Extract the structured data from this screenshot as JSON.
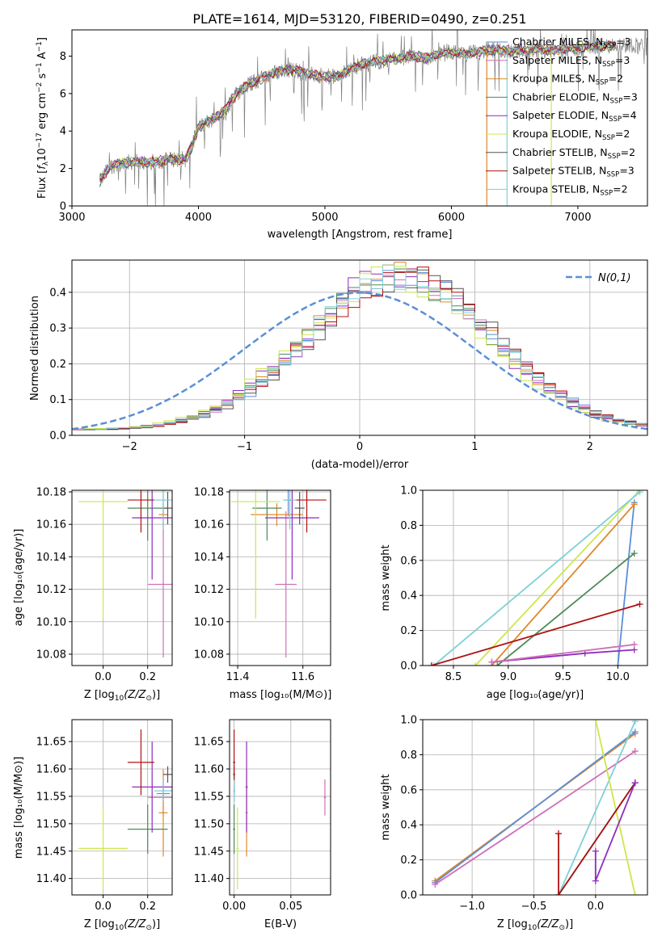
{
  "title": "PLATE=1614, MJD=53120, FIBERID=0490, z=0.251",
  "colors": {
    "chabrier_miles": "#5b8fd6",
    "salpeter_miles": "#cf6fb6",
    "kroupa_miles": "#e0882a",
    "chabrier_elodie": "#4e8a5a",
    "salpeter_elodie": "#8f2bbf",
    "kroupa_elodie": "#cbe84a",
    "chabrier_stelib": "#555555",
    "salpeter_stelib": "#b01010",
    "kroupa_stelib": "#7fd0d6",
    "data": "#808080",
    "normal": "#5b8fd6"
  },
  "chart_data": [
    {
      "id": "spectrum",
      "type": "line",
      "xlabel": "wavelength [Angstrom, rest frame]",
      "ylabel": "Flux [f_λ 10^-17 erg cm^-2 s^-1 A^-1]",
      "ylabel_main": "Flux [",
      "ylabel_f": "f",
      "ylabel_lambda_sub": "λ",
      "ylabel_rest": "10",
      "ylabel_exp": "−17",
      "ylabel_units": " erg cm",
      "ylabel_exp2": "−2",
      "ylabel_s": " s",
      "ylabel_exp3": "−1",
      "ylabel_A": " A",
      "ylabel_exp4": "−1",
      "ylabel_close": "]",
      "xlim": [
        3000,
        7550
      ],
      "ylim": [
        0,
        9.4
      ],
      "xticks": [
        "3000",
        "4000",
        "5000",
        "6000",
        "7000"
      ],
      "yticks": [
        "0",
        "2",
        "4",
        "6",
        "8"
      ],
      "continuum": {
        "x": [
          3220,
          3300,
          3400,
          3500,
          3600,
          3700,
          3800,
          3900,
          3950,
          4000,
          4100,
          4200,
          4300,
          4400,
          4500,
          4600,
          4700,
          4800,
          4900,
          5000,
          5100,
          5200,
          5300,
          5400,
          5500,
          5600,
          5700,
          5800,
          5900,
          6000,
          6100,
          6200,
          6300,
          6400,
          6500,
          6600,
          6700,
          6800,
          6900,
          7000,
          7100,
          7200,
          7300
        ],
        "y": [
          1.3,
          2.1,
          2.3,
          2.35,
          2.3,
          2.4,
          2.5,
          2.5,
          3.2,
          4.2,
          4.6,
          5.0,
          6.0,
          6.5,
          6.8,
          7.1,
          7.3,
          7.2,
          7.0,
          6.9,
          6.9,
          7.3,
          7.6,
          7.7,
          7.8,
          7.9,
          8.0,
          7.9,
          8.1,
          8.2,
          8.1,
          8.2,
          8.3,
          8.3,
          8.3,
          8.3,
          8.4,
          8.3,
          8.4,
          8.4,
          8.5,
          8.5,
          8.6
        ]
      },
      "legend": [
        {
          "label": "Chabrier MILES, N",
          "n": "3",
          "color_key": "chabrier_miles"
        },
        {
          "label": "Salpeter MILES, N",
          "n": "3",
          "color_key": "salpeter_miles"
        },
        {
          "label": "Kroupa MILES, N",
          "n": "2",
          "color_key": "kroupa_miles"
        },
        {
          "label": "Chabrier ELODIE, N",
          "n": "3",
          "color_key": "chabrier_elodie"
        },
        {
          "label": "Salpeter ELODIE, N",
          "n": "4",
          "color_key": "salpeter_elodie"
        },
        {
          "label": "Kroupa ELODIE, N",
          "n": "2",
          "color_key": "kroupa_elodie"
        },
        {
          "label": "Chabrier STELIB, N",
          "n": "2",
          "color_key": "chabrier_stelib"
        },
        {
          "label": "Salpeter STELIB, N",
          "n": "3",
          "color_key": "salpeter_stelib"
        },
        {
          "label": "Kroupa STELIB, N",
          "n": "2",
          "color_key": "kroupa_stelib"
        }
      ],
      "legend_sub": "SSP"
    },
    {
      "id": "residuals",
      "type": "histogram",
      "xlabel": "(data-model)/error",
      "ylabel": "Normed distribution",
      "xlim": [
        -2.5,
        2.5
      ],
      "ylim": [
        0,
        0.49
      ],
      "xticks": [
        "−2",
        "−1",
        "0",
        "1",
        "2"
      ],
      "yticks": [
        "0.0",
        "0.1",
        "0.2",
        "0.3",
        "0.4"
      ],
      "legend": "N(0,1)",
      "bin_width": 0.1,
      "bins_start": -2.5,
      "base_shift": 0.35,
      "base_sigma": 0.8,
      "base_peak": 0.43
    },
    {
      "id": "age_vs_Z",
      "type": "errorbar",
      "xlabel": "Z [log10(Z/Z⊙)]",
      "ylabel": "age  [log10(age/yr)]",
      "xlim": [
        -0.14,
        0.31
      ],
      "ylim": [
        10.073,
        10.181
      ],
      "xticks": [
        "0.0",
        "0.2"
      ],
      "yticks": [
        "10.08",
        "10.10",
        "10.12",
        "10.14",
        "10.16",
        "10.18"
      ]
    },
    {
      "id": "age_vs_mass",
      "type": "errorbar",
      "xlabel": "mass [log10(M/M⊙)]",
      "ylabel": "",
      "xlim": [
        11.375,
        11.685
      ],
      "ylim": [
        10.073,
        10.181
      ],
      "xticks": [
        "11.4",
        "11.6"
      ],
      "yticks": [
        "10.08",
        "10.10",
        "10.12",
        "10.14",
        "10.16",
        "10.18"
      ]
    },
    {
      "id": "weight_vs_age",
      "type": "line",
      "xlabel": "age  [log10(age/yr)]",
      "ylabel": "mass weight",
      "xlim": [
        8.22,
        10.27
      ],
      "ylim": [
        0,
        1.0
      ],
      "xticks": [
        "8.5",
        "9.0",
        "9.5",
        "10.0"
      ],
      "yticks": [
        "0.0",
        "0.2",
        "0.4",
        "0.6",
        "0.8",
        "1.0"
      ]
    },
    {
      "id": "mass_vs_Z",
      "type": "errorbar",
      "xlabel": "Z [log10(Z/Z⊙)]",
      "ylabel": "mass [log10(M/M⊙)]",
      "xlim": [
        -0.14,
        0.31
      ],
      "ylim": [
        11.37,
        11.69
      ],
      "xticks": [
        "0.0",
        "0.2"
      ],
      "yticks": [
        "11.40",
        "11.45",
        "11.50",
        "11.55",
        "11.60",
        "11.65"
      ]
    },
    {
      "id": "mass_vs_ebv",
      "type": "errorbar",
      "xlabel": "E(B-V)",
      "ylabel": "",
      "xlim": [
        -0.004,
        0.085
      ],
      "ylim": [
        11.37,
        11.69
      ],
      "xticks": [
        "0.00",
        "0.05"
      ],
      "yticks": [
        "11.40",
        "11.45",
        "11.50",
        "11.55",
        "11.60",
        "11.65"
      ]
    },
    {
      "id": "weight_vs_Z",
      "type": "line",
      "xlabel": "Z [log10(Z/Z⊙)]",
      "ylabel": "mass weight",
      "xlim": [
        -1.4,
        0.42
      ],
      "ylim": [
        0,
        1.0
      ],
      "xticks": [
        "−1.0",
        "−0.5",
        "0.0"
      ],
      "yticks": [
        "0.0",
        "0.2",
        "0.4",
        "0.6",
        "0.8",
        "1.0"
      ]
    }
  ],
  "fits": [
    {
      "key": "chabrier_miles",
      "Z": 0.27,
      "Zerr": 0.03,
      "age": 10.175,
      "ageErr": 0.01,
      "mass": 11.555,
      "massErr": 0.015,
      "ebv": 0.0,
      "ebvErr": 0.0
    },
    {
      "key": "salpeter_miles",
      "Z": 0.27,
      "Zerr": 0.07,
      "age": 10.123,
      "ageErr": 0.045,
      "mass": 11.548,
      "massErr": 0.033,
      "ebv": 0.08,
      "ebvErr": 0.001
    },
    {
      "key": "kroupa_miles",
      "Z": 0.27,
      "Zerr": 0.02,
      "age": 10.166,
      "ageErr": 0.007,
      "mass": 11.52,
      "massErr": 0.08,
      "ebv": 0.011,
      "ebvErr": 0.001
    },
    {
      "key": "chabrier_elodie",
      "Z": 0.2,
      "Zerr": 0.09,
      "age": 10.17,
      "ageErr": 0.02,
      "mass": 11.49,
      "massErr": 0.045,
      "ebv": 0.0,
      "ebvErr": 0.001
    },
    {
      "key": "salpeter_elodie",
      "Z": 0.22,
      "Zerr": 0.09,
      "age": 10.164,
      "ageErr": 0.038,
      "mass": 11.567,
      "massErr": 0.083,
      "ebv": 0.011,
      "ebvErr": 0.001
    },
    {
      "key": "kroupa_elodie",
      "Z": 0.0,
      "Zerr": 0.11,
      "age": 10.174,
      "ageErr": 0.072,
      "mass": 11.455,
      "massErr": 0.075,
      "ebv": 0.003,
      "ebvErr": 0.001
    },
    {
      "key": "chabrier_stelib",
      "Z": 0.29,
      "Zerr": 0.02,
      "age": 10.17,
      "ageErr": 0.01,
      "mass": 11.59,
      "massErr": 0.015,
      "ebv": 0.0,
      "ebvErr": 0.001
    },
    {
      "key": "salpeter_stelib",
      "Z": 0.17,
      "Zerr": 0.06,
      "age": 10.175,
      "ageErr": 0.02,
      "mass": 11.612,
      "massErr": 0.06,
      "ebv": 0.0,
      "ebvErr": 0.001
    },
    {
      "key": "kroupa_stelib",
      "Z": 0.27,
      "Zerr": 0.04,
      "age": 10.175,
      "ageErr": 0.018,
      "mass": 11.56,
      "massErr": 0.02,
      "ebv": 0.0,
      "ebvErr": 0.001
    }
  ],
  "weights_age": [
    {
      "key": "kroupa_elodie",
      "pts": [
        [
          8.7,
          0.0
        ],
        [
          10.2,
          1.0
        ]
      ]
    },
    {
      "key": "kroupa_stelib",
      "pts": [
        [
          8.32,
          0.0
        ],
        [
          10.2,
          0.99
        ]
      ]
    },
    {
      "key": "chabrier_miles",
      "pts": [
        [
          10.0,
          0.0
        ],
        [
          10.15,
          0.93
        ]
      ]
    },
    {
      "key": "kroupa_miles",
      "pts": [
        [
          8.85,
          0.0
        ],
        [
          10.15,
          0.92
        ]
      ]
    },
    {
      "key": "chabrier_elodie",
      "pts": [
        [
          8.9,
          0.0
        ],
        [
          10.15,
          0.64
        ]
      ]
    },
    {
      "key": "salpeter_elodie",
      "pts": [
        [
          8.85,
          0.02
        ],
        [
          9.7,
          0.07
        ],
        [
          10.15,
          0.09
        ]
      ]
    },
    {
      "key": "salpeter_stelib",
      "pts": [
        [
          8.3,
          0.0
        ],
        [
          10.2,
          0.35
        ]
      ]
    },
    {
      "key": "salpeter_miles",
      "pts": [
        [
          8.85,
          0.02
        ],
        [
          10.15,
          0.12
        ]
      ]
    }
  ],
  "weights_Z": [
    {
      "key": "kroupa_miles",
      "pts": [
        [
          -1.3,
          0.08
        ],
        [
          0.32,
          0.92
        ]
      ]
    },
    {
      "key": "chabrier_miles",
      "pts": [
        [
          -1.3,
          0.07
        ],
        [
          0.32,
          0.93
        ]
      ]
    },
    {
      "key": "salpeter_miles",
      "pts": [
        [
          -1.3,
          0.06
        ],
        [
          0.32,
          0.82
        ]
      ]
    },
    {
      "key": "kroupa_stelib",
      "pts": [
        [
          -0.3,
          0.0
        ],
        [
          0.32,
          0.99
        ]
      ]
    },
    {
      "key": "kroupa_elodie",
      "pts": [
        [
          0.0,
          1.0
        ],
        [
          0.32,
          0.0
        ]
      ]
    },
    {
      "key": "chabrier_elodie",
      "pts": [
        [
          -0.3,
          0.0
        ],
        [
          0.32,
          0.64
        ]
      ]
    },
    {
      "key": "salpeter_stelib",
      "pts": [
        [
          -0.3,
          0.35
        ],
        [
          -0.3,
          0.0
        ],
        [
          0.32,
          0.64
        ]
      ]
    },
    {
      "key": "salpeter_elodie",
      "pts": [
        [
          0.0,
          0.25
        ],
        [
          0.0,
          0.08
        ],
        [
          0.32,
          0.64
        ]
      ]
    }
  ]
}
